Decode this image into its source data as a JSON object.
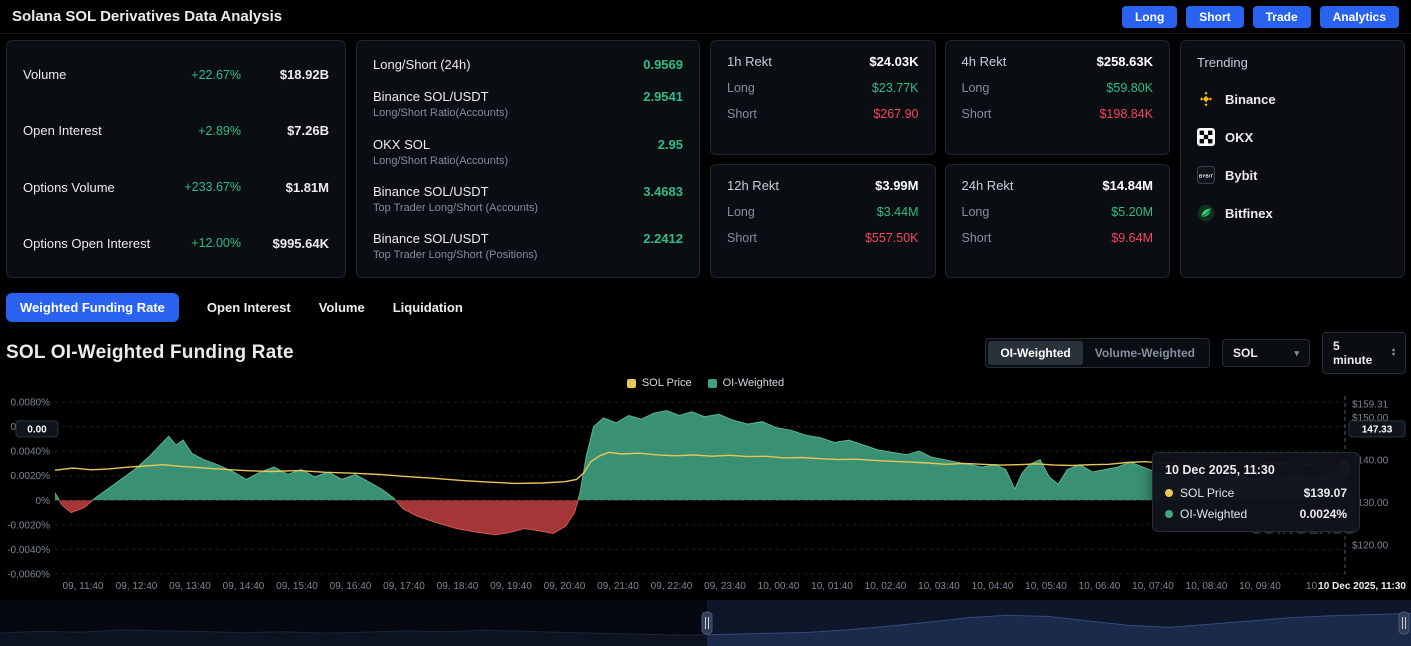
{
  "header": {
    "title": "Solana SOL Derivatives Data Analysis",
    "buttons": [
      "Long",
      "Short",
      "Trade",
      "Analytics"
    ]
  },
  "stats": {
    "rows": [
      {
        "label": "Volume",
        "change": "+22.67%",
        "value": "$18.92B"
      },
      {
        "label": "Open Interest",
        "change": "+2.89%",
        "value": "$7.26B"
      },
      {
        "label": "Options Volume",
        "change": "+233.67%",
        "value": "$1.81M"
      },
      {
        "label": "Options Open Interest",
        "change": "+12.00%",
        "value": "$995.64K"
      }
    ]
  },
  "ratios": {
    "rows": [
      {
        "label": "Long/Short (24h)",
        "sub": "",
        "value": "0.9569"
      },
      {
        "label": "Binance SOL/USDT",
        "sub": "Long/Short Ratio(Accounts)",
        "value": "2.9541"
      },
      {
        "label": "OKX SOL",
        "sub": "Long/Short Ratio(Accounts)",
        "value": "2.95"
      },
      {
        "label": "Binance SOL/USDT",
        "sub": "Top Trader Long/Short (Accounts)",
        "value": "3.4683"
      },
      {
        "label": "Binance SOL/USDT",
        "sub": "Top Trader Long/Short (Positions)",
        "value": "2.2412"
      }
    ]
  },
  "rekt": {
    "long_label": "Long",
    "short_label": "Short",
    "cards": [
      {
        "title": "1h Rekt",
        "total": "$24.03K",
        "long": "$23.77K",
        "short": "$267.90"
      },
      {
        "title": "4h Rekt",
        "total": "$258.63K",
        "long": "$59.80K",
        "short": "$198.84K"
      },
      {
        "title": "12h Rekt",
        "total": "$3.99M",
        "long": "$3.44M",
        "short": "$557.50K"
      },
      {
        "title": "24h Rekt",
        "total": "$14.84M",
        "long": "$5.20M",
        "short": "$9.64M"
      }
    ]
  },
  "trending": {
    "title": "Trending",
    "items": [
      {
        "name": "Binance"
      },
      {
        "name": "OKX"
      },
      {
        "name": "Bybit"
      },
      {
        "name": "Bitfinex"
      }
    ]
  },
  "tabs": [
    {
      "label": "Weighted Funding Rate",
      "active": true
    },
    {
      "label": "Open Interest",
      "active": false
    },
    {
      "label": "Volume",
      "active": false
    },
    {
      "label": "Liquidation",
      "active": false
    }
  ],
  "section_title": "SOL OI-Weighted Funding Rate",
  "controls": {
    "toggle": [
      {
        "label": "OI-Weighted",
        "active": true
      },
      {
        "label": "Volume-Weighted",
        "active": false
      }
    ],
    "symbol": "SOL",
    "interval": "5 minute"
  },
  "legend": [
    {
      "label": "SOL Price",
      "color": "#e8c659"
    },
    {
      "label": "OI-Weighted",
      "color": "#3fa37f"
    }
  ],
  "tooltip": {
    "time": "10 Dec 2025, 11:30",
    "rows": [
      {
        "label": "SOL Price",
        "value": "$139.07",
        "color": "#e8c659"
      },
      {
        "label": "OI-Weighted",
        "value": "0.0024%",
        "color": "#3fa37f"
      }
    ]
  },
  "watermark": "COINGLASS",
  "chart_data": {
    "type": "area",
    "title": "SOL OI-Weighted Funding Rate",
    "x_start": "09 Dec 2025, 11:40",
    "x_end": "10 Dec 2025, 11:30",
    "interval": "5 minute",
    "left_axis": {
      "label": "Funding Rate",
      "unit": "%",
      "max": 0.008,
      "min": -0.006,
      "ticks": [
        "0.0080%",
        "0.0060%",
        "0.0040%",
        "0.0020%",
        "0%",
        "-0.0020%",
        "-0.0040%",
        "-0.0060%"
      ]
    },
    "right_axis": {
      "label": "SOL Price",
      "unit": "$",
      "max": 159.31,
      "min": 120,
      "ticks": [
        "$159.31",
        "$150.00",
        "$140.00",
        "$130.00",
        "$120.00"
      ]
    },
    "crosshair": {
      "left_badge": "0.00",
      "right_badge": "147.33"
    },
    "x_tick_labels": [
      "09, 11:40",
      "09, 12:40",
      "09, 13:40",
      "09, 14:40",
      "09, 15:40",
      "09, 16:40",
      "09, 17:40",
      "09, 18:40",
      "09, 19:40",
      "09, 20:40",
      "09, 21:40",
      "09, 22:40",
      "09, 23:40",
      "10, 00:40",
      "10, 01:40",
      "10, 02:40",
      "10, 03:40",
      "10, 04:40",
      "10, 05:40",
      "10, 06:40",
      "10, 07:40",
      "10, 08:40",
      "10, 09:40",
      "10,"
    ],
    "x_last_label": "10 Dec 2025, 11:30",
    "series": [
      {
        "name": "OI-Weighted",
        "type": "area",
        "axis": "left",
        "pos_color": "#3e9c7c",
        "neg_color": "#b23b3c",
        "last_value": 0.0024,
        "points": [
          [
            0,
            0.0006
          ],
          [
            8,
            -0.0004
          ],
          [
            18,
            -0.001
          ],
          [
            32,
            -0.0006
          ],
          [
            45,
            0.0002
          ],
          [
            60,
            0.001
          ],
          [
            75,
            0.0018
          ],
          [
            90,
            0.0026
          ],
          [
            105,
            0.0036
          ],
          [
            118,
            0.0046
          ],
          [
            126,
            0.0052
          ],
          [
            134,
            0.0045
          ],
          [
            142,
            0.0049
          ],
          [
            152,
            0.0038
          ],
          [
            165,
            0.0033
          ],
          [
            180,
            0.0029
          ],
          [
            198,
            0.0023
          ],
          [
            212,
            0.0017
          ],
          [
            228,
            0.0023
          ],
          [
            243,
            0.0027
          ],
          [
            258,
            0.0021
          ],
          [
            273,
            0.0025
          ],
          [
            288,
            0.0019
          ],
          [
            303,
            0.0023
          ],
          [
            318,
            0.0017
          ],
          [
            333,
            0.0021
          ],
          [
            348,
            0.0015
          ],
          [
            362,
            0.0009
          ],
          [
            375,
            0.0002
          ],
          [
            386,
            -0.0007
          ],
          [
            402,
            -0.0013
          ],
          [
            422,
            -0.0018
          ],
          [
            445,
            -0.0023
          ],
          [
            468,
            -0.0026
          ],
          [
            488,
            -0.0028
          ],
          [
            505,
            -0.0026
          ],
          [
            520,
            -0.0023
          ],
          [
            538,
            -0.0025
          ],
          [
            552,
            -0.0027
          ],
          [
            566,
            -0.0021
          ],
          [
            576,
            -0.001
          ],
          [
            582,
            0.0006
          ],
          [
            589,
            0.0036
          ],
          [
            597,
            0.006
          ],
          [
            608,
            0.0067
          ],
          [
            622,
            0.0063
          ],
          [
            636,
            0.0069
          ],
          [
            650,
            0.0066
          ],
          [
            664,
            0.0071
          ],
          [
            678,
            0.0073
          ],
          [
            692,
            0.0069
          ],
          [
            706,
            0.0072
          ],
          [
            720,
            0.0068
          ],
          [
            736,
            0.007
          ],
          [
            752,
            0.0065
          ],
          [
            768,
            0.0062
          ],
          [
            784,
            0.0064
          ],
          [
            800,
            0.0059
          ],
          [
            816,
            0.0057
          ],
          [
            832,
            0.0053
          ],
          [
            848,
            0.0051
          ],
          [
            864,
            0.0047
          ],
          [
            880,
            0.0049
          ],
          [
            896,
            0.0045
          ],
          [
            912,
            0.0041
          ],
          [
            928,
            0.0039
          ],
          [
            944,
            0.0037
          ],
          [
            958,
            0.004
          ],
          [
            972,
            0.0035
          ],
          [
            986,
            0.0033
          ],
          [
            1000,
            0.0031
          ],
          [
            1014,
            0.0029
          ],
          [
            1028,
            0.0027
          ],
          [
            1042,
            0.0029
          ],
          [
            1054,
            0.0025
          ],
          [
            1064,
            0.0009
          ],
          [
            1072,
            0.0022
          ],
          [
            1080,
            0.0029
          ],
          [
            1092,
            0.0033
          ],
          [
            1102,
            0.0019
          ],
          [
            1112,
            0.0013
          ],
          [
            1122,
            0.0025
          ],
          [
            1136,
            0.0029
          ],
          [
            1150,
            0.0023
          ],
          [
            1164,
            0.0025
          ],
          [
            1178,
            0.0027
          ],
          [
            1192,
            0.0031
          ],
          [
            1206,
            0.0027
          ],
          [
            1220,
            0.0023
          ],
          [
            1236,
            0.0021
          ],
          [
            1252,
            0.0023
          ],
          [
            1268,
            0.0019
          ],
          [
            1284,
            0.0021
          ],
          [
            1300,
            0.0019
          ],
          [
            1316,
            0.0021
          ],
          [
            1332,
            0.0017
          ],
          [
            1348,
            0.0021
          ],
          [
            1364,
            0.0019
          ],
          [
            1380,
            0.0021
          ],
          [
            1396,
            0.0019
          ],
          [
            1412,
            0.0022
          ],
          [
            1430,
            0.0024
          ]
        ]
      },
      {
        "name": "SOL Price",
        "type": "line",
        "axis": "right",
        "color": "#e8c659",
        "last_value": 139.07,
        "points": [
          [
            0,
            137.6
          ],
          [
            20,
            138.1
          ],
          [
            40,
            137.7
          ],
          [
            60,
            137.9
          ],
          [
            80,
            138.3
          ],
          [
            100,
            138.6
          ],
          [
            120,
            138.9
          ],
          [
            140,
            138.5
          ],
          [
            160,
            138.2
          ],
          [
            180,
            137.9
          ],
          [
            210,
            137.5
          ],
          [
            240,
            137.3
          ],
          [
            270,
            137.5
          ],
          [
            300,
            137.1
          ],
          [
            330,
            136.9
          ],
          [
            360,
            136.6
          ],
          [
            390,
            136.1
          ],
          [
            420,
            135.7
          ],
          [
            450,
            135.2
          ],
          [
            480,
            134.8
          ],
          [
            510,
            134.5
          ],
          [
            540,
            134.6
          ],
          [
            565,
            134.9
          ],
          [
            578,
            135.4
          ],
          [
            586,
            136.9
          ],
          [
            594,
            139.6
          ],
          [
            604,
            141.0
          ],
          [
            614,
            141.8
          ],
          [
            628,
            141.4
          ],
          [
            648,
            141.6
          ],
          [
            668,
            141.2
          ],
          [
            688,
            141.0
          ],
          [
            708,
            141.2
          ],
          [
            728,
            140.9
          ],
          [
            748,
            141.1
          ],
          [
            768,
            140.8
          ],
          [
            788,
            140.9
          ],
          [
            808,
            140.5
          ],
          [
            828,
            140.6
          ],
          [
            848,
            140.3
          ],
          [
            868,
            140.1
          ],
          [
            888,
            140.2
          ],
          [
            908,
            139.9
          ],
          [
            928,
            139.7
          ],
          [
            948,
            139.5
          ],
          [
            968,
            139.3
          ],
          [
            988,
            139.0
          ],
          [
            1008,
            139.2
          ],
          [
            1028,
            139.0
          ],
          [
            1048,
            138.8
          ],
          [
            1068,
            138.9
          ],
          [
            1088,
            139.1
          ],
          [
            1108,
            138.8
          ],
          [
            1128,
            138.7
          ],
          [
            1148,
            138.9
          ],
          [
            1168,
            139.0
          ],
          [
            1188,
            139.4
          ],
          [
            1208,
            139.6
          ],
          [
            1228,
            139.3
          ],
          [
            1248,
            139.1
          ],
          [
            1268,
            138.9
          ],
          [
            1288,
            139.0
          ],
          [
            1308,
            139.1
          ],
          [
            1328,
            139.0
          ],
          [
            1348,
            139.2
          ],
          [
            1368,
            139.1
          ],
          [
            1388,
            139.0
          ],
          [
            1408,
            139.1
          ],
          [
            1430,
            139.07
          ]
        ]
      }
    ],
    "navigator": [
      0.34,
      0.4,
      0.37,
      0.44,
      0.41,
      0.39,
      0.35,
      0.38,
      0.34,
      0.37,
      0.41,
      0.38,
      0.43,
      0.4,
      0.36,
      0.33,
      0.3,
      0.28,
      0.3,
      0.33,
      0.36,
      0.44,
      0.55,
      0.68,
      0.82,
      0.9,
      0.86,
      0.72,
      0.58,
      0.52,
      0.62,
      0.72,
      0.82,
      0.88,
      0.92,
      0.96
    ]
  }
}
